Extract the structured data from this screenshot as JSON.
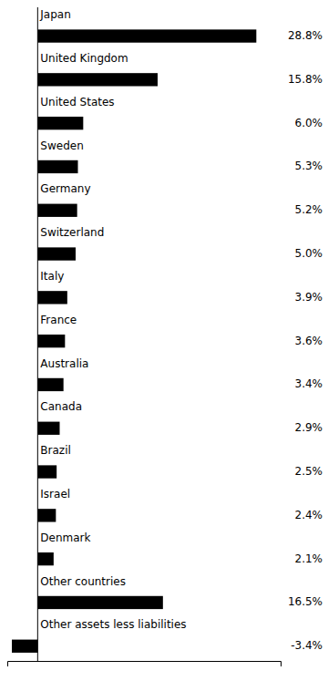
{
  "chart_data": {
    "type": "bar",
    "orientation": "horizontal",
    "categories": [
      "Japan",
      "United Kingdom",
      "United States",
      "Sweden",
      "Germany",
      "Switzerland",
      "Italy",
      "France",
      "Australia",
      "Canada",
      "Brazil",
      "Israel",
      "Denmark",
      "Other countries",
      "Other assets less liabilities"
    ],
    "values": [
      28.8,
      15.8,
      6.0,
      5.3,
      5.2,
      5.0,
      3.9,
      3.6,
      3.4,
      2.9,
      2.5,
      2.4,
      2.1,
      16.5,
      -3.4
    ],
    "value_labels": [
      "28.8%",
      "15.8%",
      "6.0%",
      "5.3%",
      "5.2%",
      "5.0%",
      "3.9%",
      "3.6%",
      "3.4%",
      "2.9%",
      "2.5%",
      "2.4%",
      "2.1%",
      "16.5%",
      "-3.4%"
    ],
    "data_labels": true,
    "color": "#000000",
    "xlim": [
      -4,
      32
    ],
    "tick_labels": false,
    "grid": false
  }
}
